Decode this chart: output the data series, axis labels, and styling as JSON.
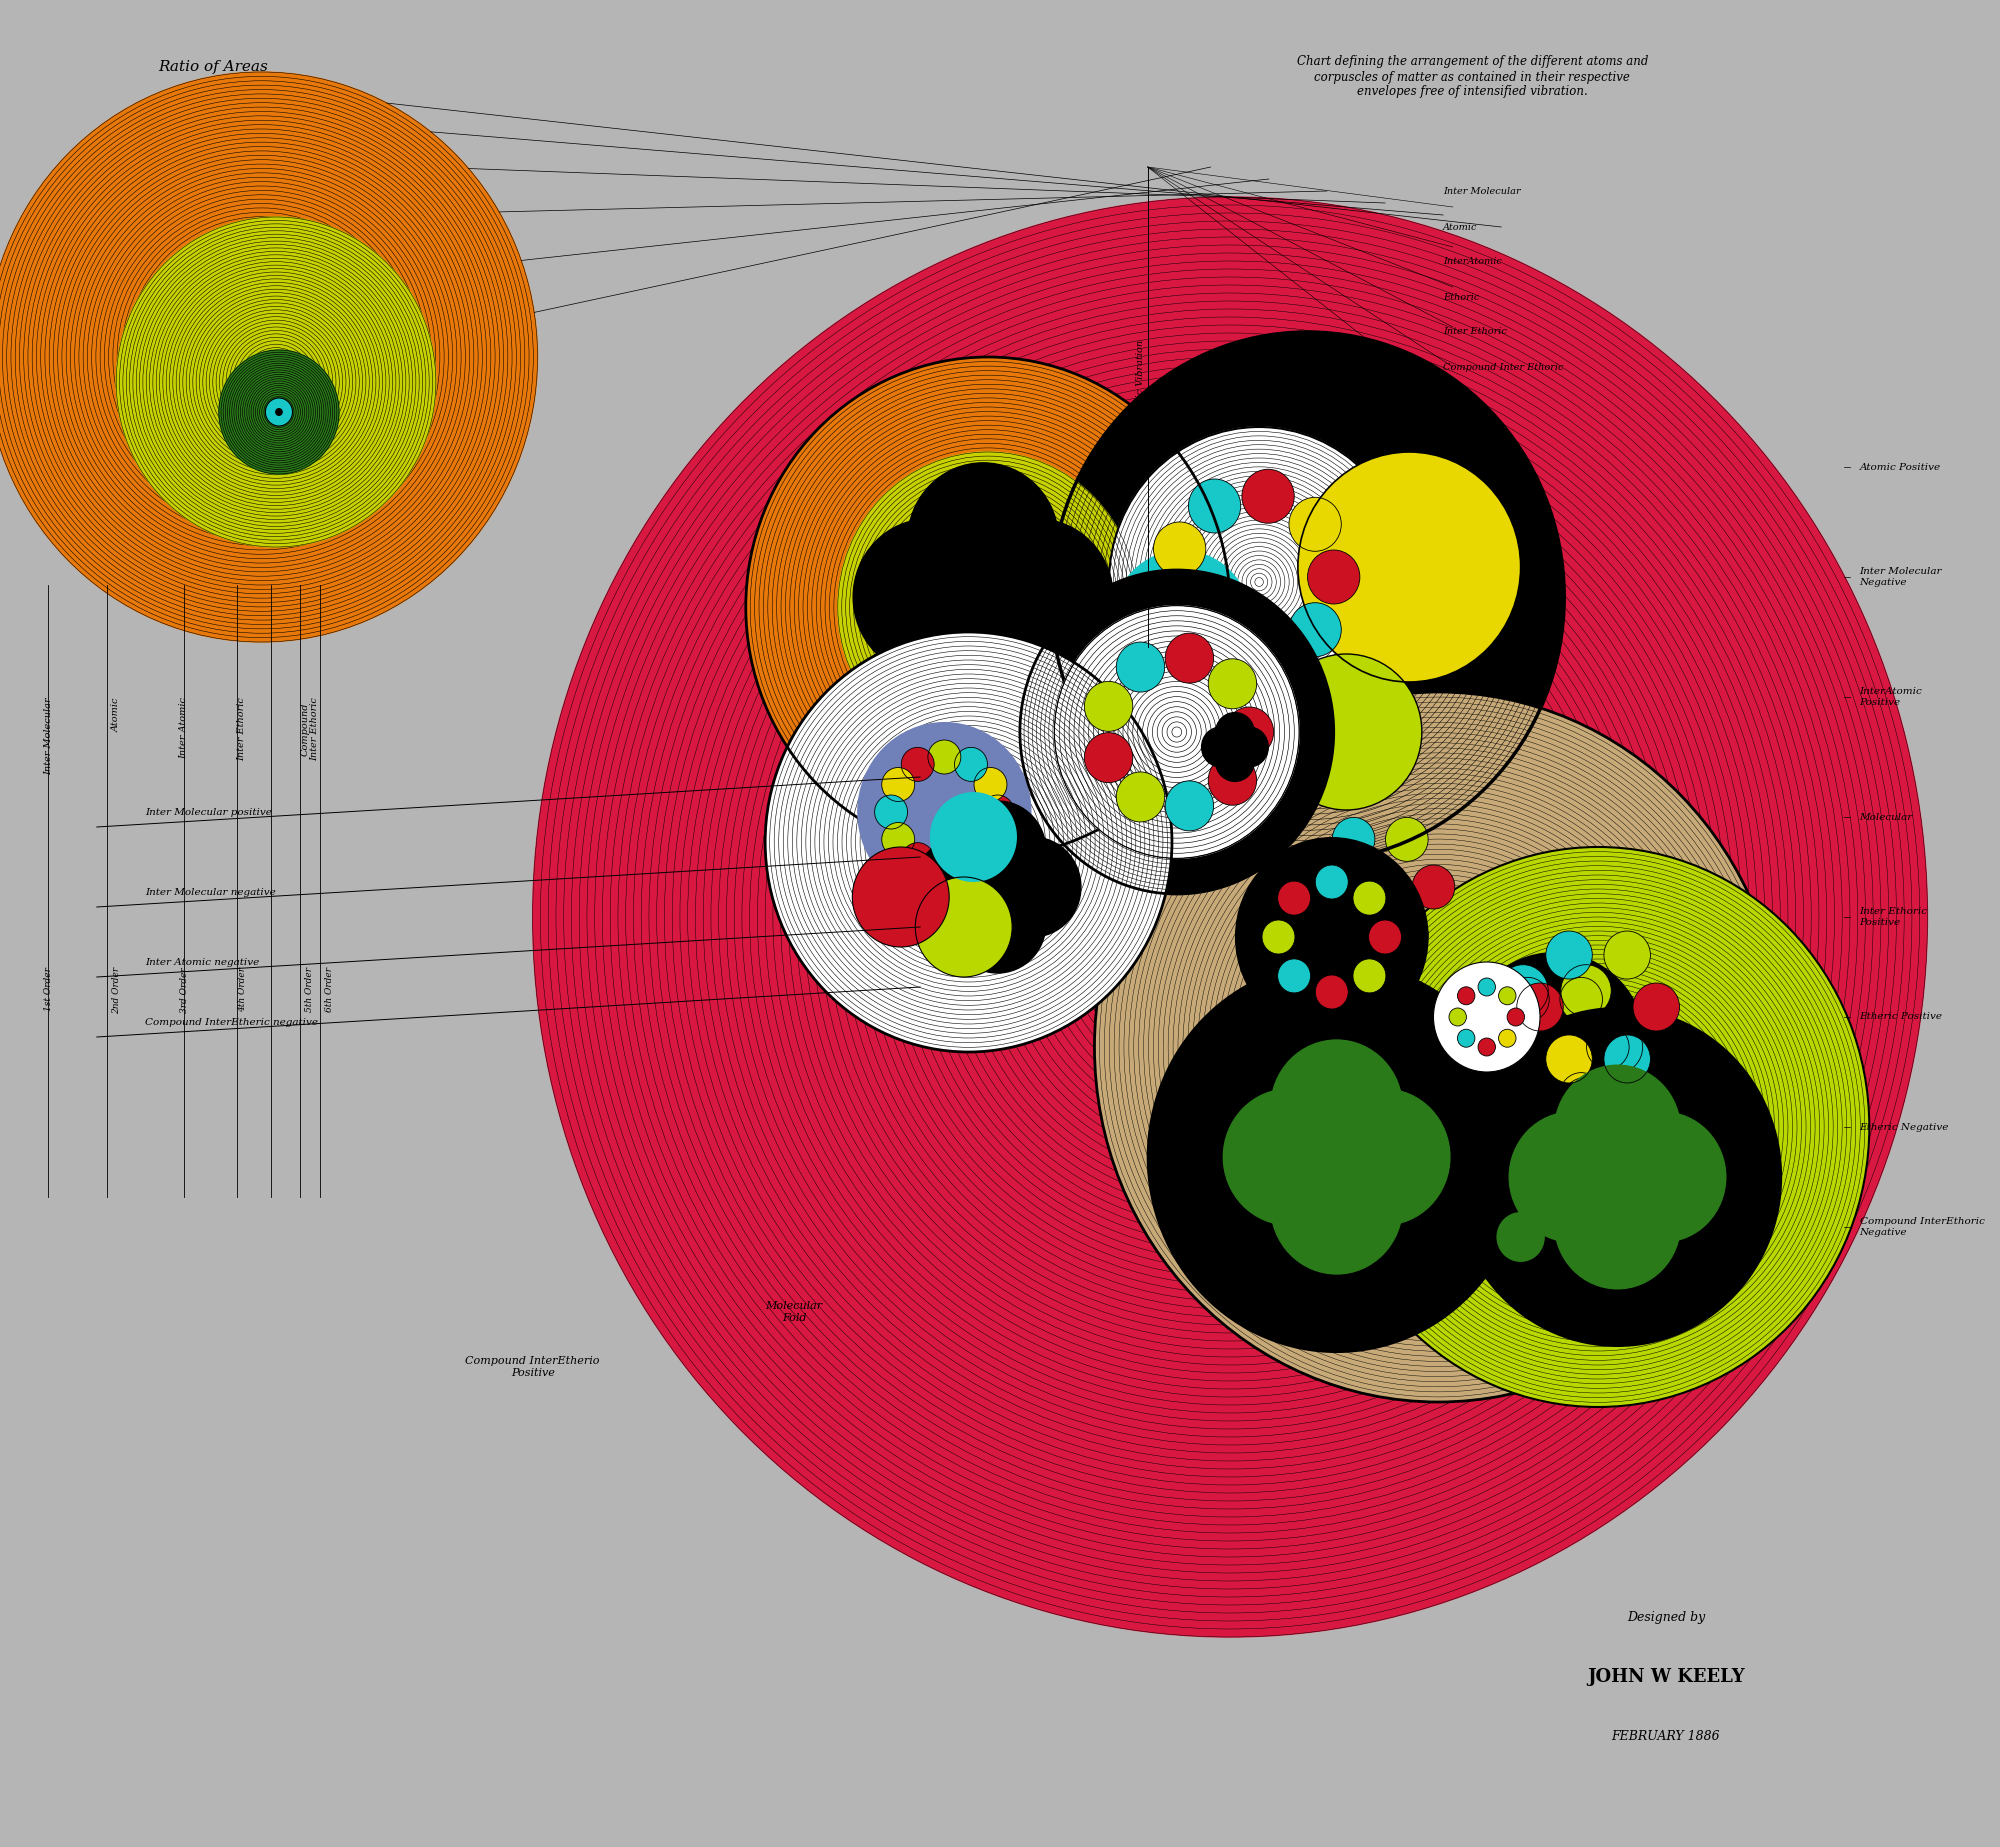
{
  "bg_color": "#b5b5b5",
  "orange_color": "#E8780A",
  "yellow_lime": "#C8D200",
  "green_color": "#2A7A1A",
  "red_main": "#CC1122",
  "black_color": "#080808",
  "white_color": "#FFFFFF",
  "cyan_color": "#18C8C8",
  "lime_color": "#B8D800",
  "tan_color": "#C8AA78",
  "bright_yellow": "#E8D800",
  "pink_red": "#D81840",
  "blue_tinge": "#7080B8",
  "title": "Chart defining the arrangement of the different atoms and\ncorpuscles of matter as contained in their respective\nenvelopes free of intensified vibration.",
  "subtitle": "Ratio of Areas",
  "right_labels_top": [
    "Atomic Positive",
    "Inter Molecular\nNegative",
    "InterAtomic\nPositive"
  ],
  "right_labels_bottom": [
    "Molecular",
    "Inter Ethoric\nPositive",
    "Etheric Positive",
    "Etheric Negative",
    "Compound InterEthoric\nNegative"
  ],
  "left_vertical_labels": [
    "Inter Molecular",
    "Atomic",
    "Inter Atomic",
    "Inter Ethoric",
    "Compound\nInter Ethoric"
  ],
  "order_labels": [
    "1st Order",
    "2nd Order",
    "3rd Order",
    "4th Order",
    "5th Order",
    "6th Order"
  ],
  "bottom_slope_labels": [
    "Inter Molecular positive",
    "Inter Molecular negative",
    "Inter Atomic negative",
    "Compound InterEtheric negative"
  ],
  "top_fan_labels": [
    "Inter Molecular",
    "Atomic",
    "InterAtomic",
    "Ethoric",
    "Inter Ethoric",
    "Compound Inter Ethoric"
  ],
  "bottom_text_labels": [
    "Molecular\nFold",
    "Compound InterEtherio\nPositive"
  ],
  "author": "JOHN W KEELY",
  "date": "FEBRUARY 1886",
  "designed_by": "Designed by"
}
